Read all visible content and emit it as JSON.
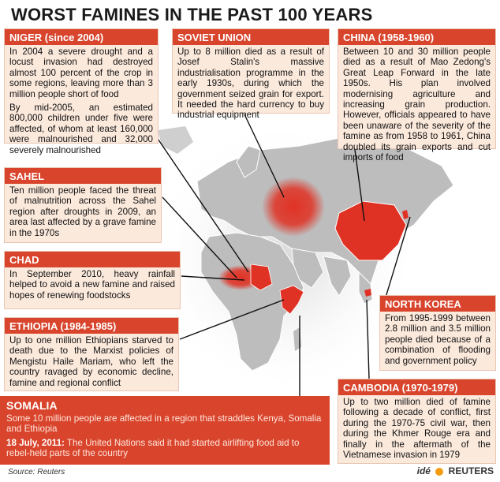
{
  "title": "WORST FAMINES IN THE PAST 100 YEARS",
  "boxes": {
    "niger": {
      "heading": "NIGER (since 2004)",
      "p1": "In 2004 a severe drought and a locust invasion had destroyed almost 100 percent of the crop in some regions, leaving more than 3 million people short of food",
      "p2": "By mid-2005, an estimated 800,000 children under five were affected, of whom at least 160,000 were malnourished and 32,000 severely malnourished"
    },
    "soviet": {
      "heading": "SOVIET UNION",
      "p1": "Up to 8 million died as a result of Josef Stalin's massive industrialisation programme in the early 1930s, during which the government seized grain for export. It needed the hard currency to buy industrial equipment"
    },
    "china": {
      "heading": "CHINA (1958-1960)",
      "p1": "Between 10 and 30 million people died as a result of Mao Zedong's Great Leap Forward in the late 1950s. His plan involved modernising agriculture and increasing grain production. However, officials appeared to have been unaware of the severity of the famine as from 1958 to 1961, China doubled its grain exports and cut imports of food"
    },
    "sahel": {
      "heading": "SAHEL",
      "p1": "Ten million people faced the threat of malnutrition across the Sahel region after droughts in 2009, an area last affected by a grave famine in the 1970s"
    },
    "chad": {
      "heading": "CHAD",
      "p1": "In September 2010, heavy rainfall helped to avoid a new famine and raised hopes of renewing foodstocks"
    },
    "ethiopia": {
      "heading": "ETHIOPIA (1984-1985)",
      "p1": "Up to one million Ethiopians starved to death due to the Marxist policies of Mengistu Haile Mariam, who left the country ravaged by economic decline, famine and regional conflict"
    },
    "northkorea": {
      "heading": "NORTH KOREA",
      "p1": "From 1995-1999 between 2.8 million and 3.5 million people died because of a combination of flooding and government policy"
    },
    "cambodia": {
      "heading": "CAMBODIA (1970-1979)",
      "p1": "Up to two million died of famine following a decade of conflict, first during the 1970-75 civil war, then during the Khmer Rouge era and finally in the aftermath of the Vietnamese invasion in 1979"
    },
    "somalia": {
      "heading": "SOMALIA",
      "p1": "Some 10 million people are affected in a region that straddles Kenya, Somalia and Ethiopia",
      "p2_date": "18 July, 2011:",
      "p2_text": " The United Nations said it had started airlifting food aid to rebel-held parts of the country"
    }
  },
  "source": "Source: Reuters",
  "credit": {
    "ide": "idé",
    "reuters": "REUTERS"
  },
  "colors": {
    "accent": "#d8442c",
    "box_bg": "#fbe9dc",
    "map_land": "#bdbdbd",
    "highlight": "#e03224"
  }
}
